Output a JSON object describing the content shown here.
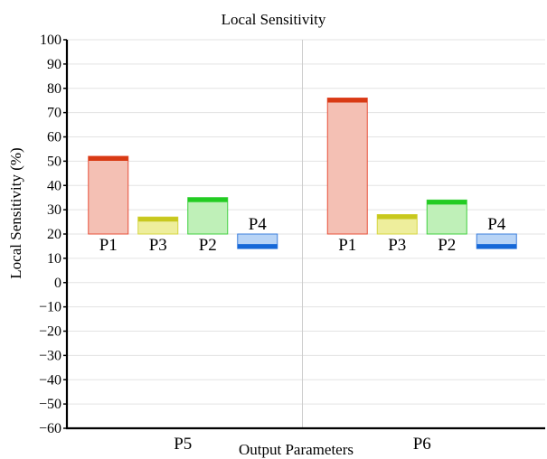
{
  "chart_data": {
    "type": "bar",
    "title": "Local Sensitivity",
    "xlabel": "Output Parameters",
    "ylabel": "Local Sensitivity (%)",
    "ylim": [
      -60,
      100
    ],
    "yticks": [
      "100",
      "90",
      "80",
      "70",
      "60",
      "50",
      "40",
      "30",
      "20",
      "10",
      "0",
      "−10",
      "−20",
      "−30",
      "−40",
      "−50",
      "−60"
    ],
    "bar_base": 20,
    "groups": [
      {
        "label": "P5",
        "bars": [
          {
            "label": "P1",
            "value": 52,
            "color": "#f4c0b4",
            "edge": "#e8503a",
            "cap": "#d83a14"
          },
          {
            "label": "P3",
            "value": 27,
            "color": "#eeee9c",
            "edge": "#d6d640",
            "cap": "#c8c81e"
          },
          {
            "label": "P2",
            "value": 35,
            "color": "#bff0b8",
            "edge": "#40d040",
            "cap": "#22cc22"
          },
          {
            "label": "P4",
            "value": 14,
            "color": "#b8d4f6",
            "edge": "#3c7fdc",
            "cap": "#1668d8"
          }
        ]
      },
      {
        "label": "P6",
        "bars": [
          {
            "label": "P1",
            "value": 76,
            "color": "#f4c0b4",
            "edge": "#e8503a",
            "cap": "#d83a14"
          },
          {
            "label": "P3",
            "value": 28,
            "color": "#eeee9c",
            "edge": "#d6d640",
            "cap": "#c8c81e"
          },
          {
            "label": "P2",
            "value": 34,
            "color": "#bff0b8",
            "edge": "#40d040",
            "cap": "#22cc22"
          },
          {
            "label": "P4",
            "value": 14,
            "color": "#b8d4f6",
            "edge": "#3c7fdc",
            "cap": "#1668d8"
          }
        ]
      }
    ],
    "grid": true
  }
}
